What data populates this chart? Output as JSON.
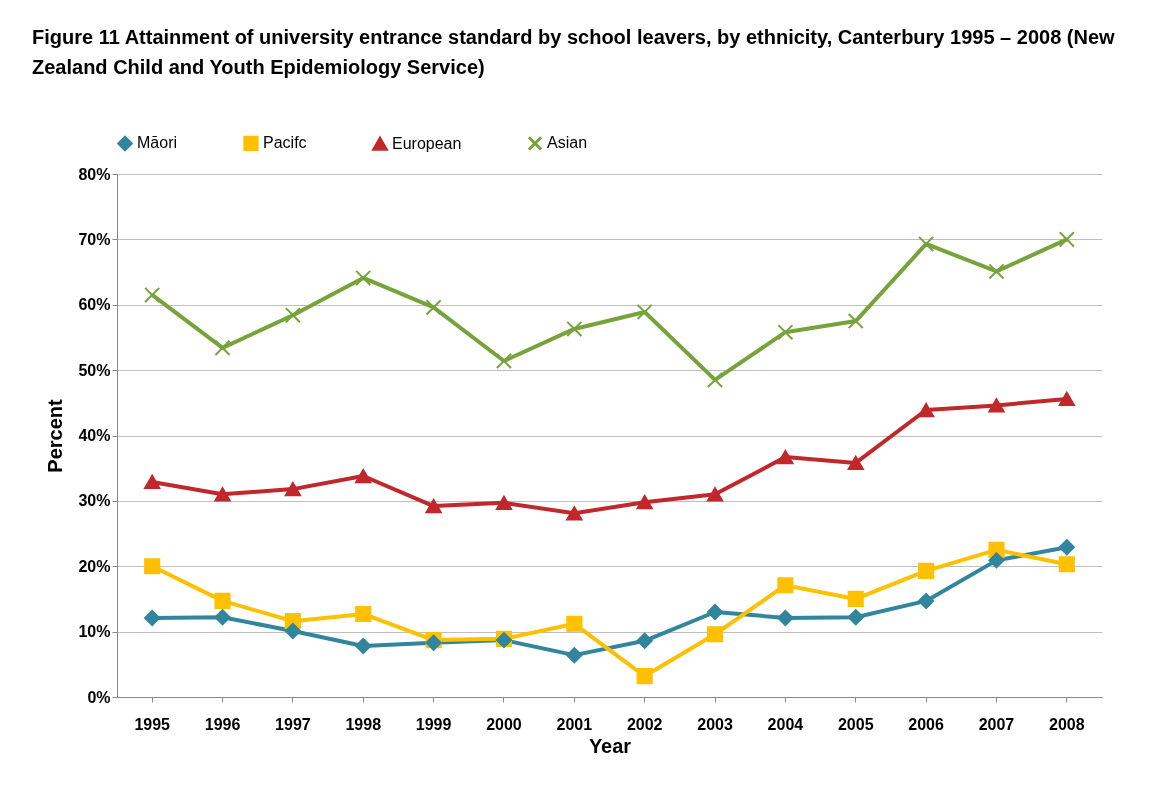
{
  "chart_data": {
    "type": "line",
    "title": "Figure 11 Attainment of university entrance standard by school leavers, by ethnicity, Canterbury 1995 – 2008 (New Zealand Child and Youth Epidemiology Service)",
    "xlabel": "Year",
    "ylabel": "Percent",
    "categories": [
      "1995",
      "1996",
      "1997",
      "1998",
      "1999",
      "2000",
      "2001",
      "2002",
      "2003",
      "2004",
      "2005",
      "2006",
      "2007",
      "2008"
    ],
    "series": [
      {
        "name": "Māori",
        "color": "#31859c",
        "marker": "diamond",
        "values": [
          12.1,
          12.2,
          10.1,
          7.8,
          8.3,
          8.7,
          6.4,
          8.6,
          13.0,
          12.1,
          12.2,
          14.7,
          20.9,
          22.9
        ]
      },
      {
        "name": "Pacifc",
        "color": "#ffc000",
        "marker": "square",
        "values": [
          20.0,
          14.7,
          11.6,
          12.7,
          8.7,
          8.9,
          11.2,
          3.2,
          9.6,
          17.1,
          15.0,
          19.3,
          22.5,
          20.3
        ]
      },
      {
        "name": "European",
        "color": "#c0282b",
        "marker": "triangle",
        "values": [
          32.9,
          31.0,
          31.8,
          33.8,
          29.2,
          29.7,
          28.1,
          29.8,
          31.0,
          36.7,
          35.8,
          43.9,
          44.6,
          45.6
        ]
      },
      {
        "name": "Asian",
        "color": "#77a33a",
        "marker": "cross",
        "values": [
          61.5,
          53.4,
          58.4,
          64.1,
          59.6,
          51.4,
          56.3,
          58.9,
          48.5,
          55.8,
          57.5,
          69.3,
          65.1,
          70.0
        ]
      }
    ],
    "ylim": [
      0,
      80
    ],
    "yticks": [
      {
        "value": 0,
        "label": "0%"
      },
      {
        "value": 10,
        "label": "10%"
      },
      {
        "value": 20,
        "label": "20%"
      },
      {
        "value": 30,
        "label": "30%"
      },
      {
        "value": 40,
        "label": "40%"
      },
      {
        "value": 50,
        "label": "50%"
      },
      {
        "value": 60,
        "label": "60%"
      },
      {
        "value": 70,
        "label": "70%"
      },
      {
        "value": 80,
        "label": "80%"
      }
    ],
    "grid": "y",
    "legend": "top",
    "line_style": "solid"
  }
}
